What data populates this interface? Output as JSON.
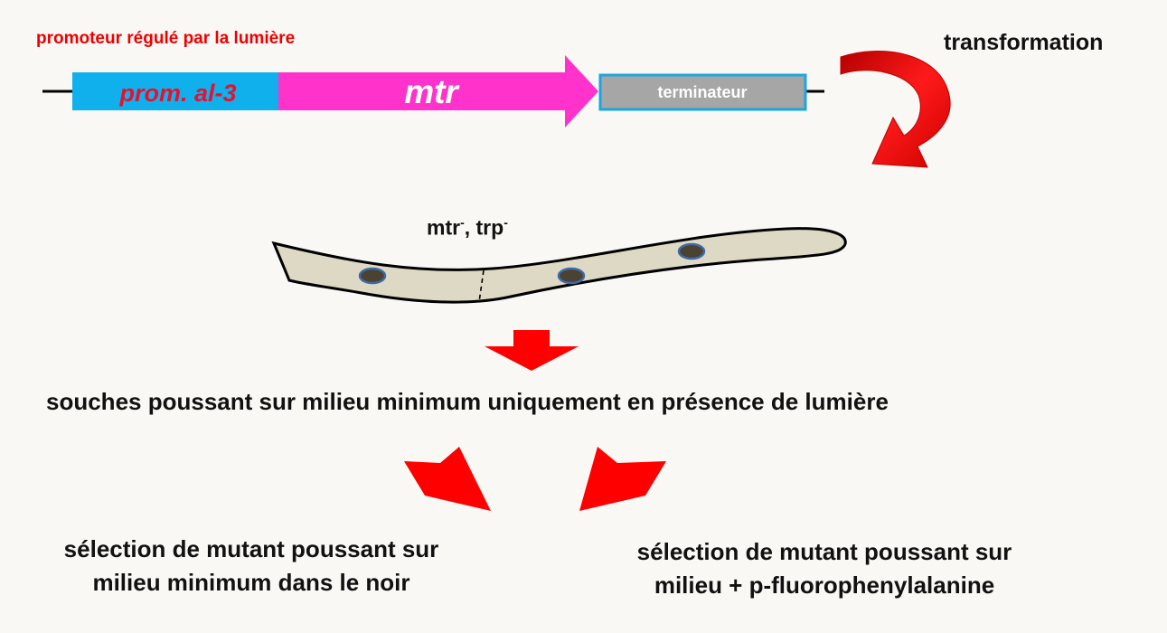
{
  "construct": {
    "promoter_caption": "promoteur régulé par la lumière",
    "promoter_label": "prom. al-3",
    "gene_label": "mtr",
    "terminator_label": "terminateur"
  },
  "transformation_label": "transformation",
  "hypha": {
    "genotype_part1": "mtr",
    "genotype_sup1": "-",
    "genotype_sep": ", trp",
    "genotype_sup2": "-"
  },
  "step_growth_light": "souches poussant sur milieu minimum uniquement en présence de lumière",
  "selection_left": {
    "line1": "sélection de mutant poussant sur",
    "line2": "milieu minimum dans le noir"
  },
  "selection_right": {
    "line1": "sélection de mutant poussant sur",
    "line2": "milieu + p-fluorophenylalanine"
  },
  "colors": {
    "background": "#f9f8f5",
    "promoter_fill": "#10b0ec",
    "promoter_text": "#e8112d",
    "gene_fill": "#ff33cc",
    "terminator_fill": "#a6a6a6",
    "terminator_border": "#1aa7e0",
    "caption_red": "#ee0000",
    "arrow_red": "#ff0000",
    "hypha_fill": "#ddd9c4",
    "nucleus_fill": "#4a4233",
    "nucleus_border": "#3f6aa8"
  }
}
